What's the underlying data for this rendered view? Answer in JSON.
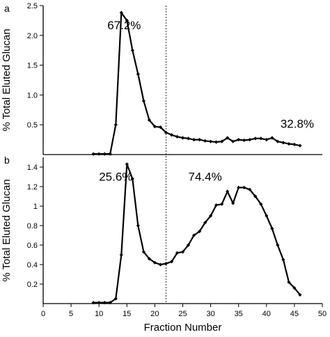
{
  "chart_data": {
    "type": "line",
    "xlabel": "Fraction Number",
    "xlim": [
      0,
      50
    ],
    "xticks": [
      0,
      5,
      10,
      15,
      20,
      25,
      30,
      35,
      40,
      45,
      50
    ],
    "divider_x": 22,
    "panels": [
      {
        "label": "a",
        "ylabel": "% Total Eluted Glucan",
        "ylim": [
          0,
          2.5
        ],
        "yticks": [
          0.5,
          1.0,
          1.5,
          2.0,
          2.5
        ],
        "ytick_labels": [
          "0.5",
          "1.0",
          "1.5",
          "2.0",
          "2.5"
        ],
        "annotations": [
          {
            "text": "67.2%",
            "x": 11.5,
            "y": 2.1
          },
          {
            "text": "32.8%",
            "x": 42.5,
            "y": 0.45
          }
        ],
        "series": [
          {
            "x": [
              9,
              10,
              11,
              12,
              13,
              14,
              15,
              16,
              17,
              18,
              19,
              20,
              21,
              22,
              23,
              24,
              25,
              26,
              27,
              28,
              29,
              30,
              31,
              32,
              33,
              34,
              35,
              36,
              37,
              38,
              39,
              40,
              41,
              42,
              43,
              44,
              45,
              46
            ],
            "values": [
              0.01,
              0.01,
              0.01,
              0.01,
              0.5,
              2.38,
              2.25,
              1.75,
              1.35,
              0.9,
              0.58,
              0.47,
              0.46,
              0.37,
              0.33,
              0.3,
              0.28,
              0.27,
              0.25,
              0.25,
              0.23,
              0.22,
              0.21,
              0.22,
              0.28,
              0.22,
              0.25,
              0.24,
              0.25,
              0.27,
              0.27,
              0.25,
              0.28,
              0.22,
              0.2,
              0.18,
              0.17,
              0.15
            ]
          }
        ]
      },
      {
        "label": "b",
        "ylabel": "% Total Eluted Glucan",
        "ylim": [
          0,
          1.5
        ],
        "yticks": [
          0.2,
          0.4,
          0.6,
          0.8,
          1.0,
          1.2,
          1.4
        ],
        "ytick_labels": [
          "0.2",
          "0.4",
          "0.6",
          "0.8",
          "1",
          "1.2",
          "1.4"
        ],
        "annotations": [
          {
            "text": "25.6%",
            "x": 10,
            "y": 1.26
          },
          {
            "text": "74.4%",
            "x": 26,
            "y": 1.26
          }
        ],
        "series": [
          {
            "x": [
              9,
              10,
              11,
              12,
              13,
              14,
              15,
              16,
              17,
              18,
              19,
              20,
              21,
              22,
              23,
              24,
              25,
              26,
              27,
              28,
              29,
              30,
              31,
              32,
              33,
              34,
              35,
              36,
              37,
              38,
              39,
              40,
              41,
              42,
              43,
              44,
              45,
              46
            ],
            "values": [
              0.01,
              0.01,
              0.01,
              0.01,
              0.05,
              0.5,
              1.43,
              1.28,
              0.8,
              0.53,
              0.46,
              0.42,
              0.4,
              0.41,
              0.43,
              0.52,
              0.53,
              0.6,
              0.7,
              0.74,
              0.83,
              0.9,
              1.01,
              1.02,
              1.15,
              1.03,
              1.19,
              1.19,
              1.17,
              1.1,
              1.02,
              0.9,
              0.77,
              0.6,
              0.45,
              0.22,
              0.16,
              0.09
            ]
          }
        ]
      }
    ]
  }
}
